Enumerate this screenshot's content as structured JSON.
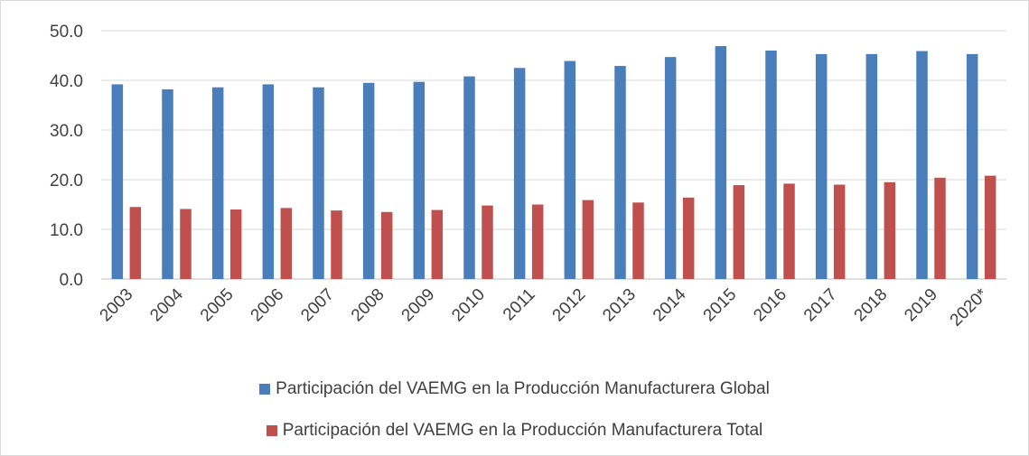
{
  "chart_data": {
    "type": "bar",
    "title": "",
    "xlabel": "",
    "ylabel": "",
    "ylim": [
      0,
      50
    ],
    "yticks": [
      "0.0",
      "10.0",
      "20.0",
      "30.0",
      "40.0",
      "50.0"
    ],
    "grid": true,
    "legend_position": "bottom",
    "categories": [
      "2003",
      "2004",
      "2005",
      "2006",
      "2007",
      "2008",
      "2009",
      "2010",
      "2011",
      "2012",
      "2013",
      "2014",
      "2015",
      "2016",
      "2017",
      "2018",
      "2019",
      "2020*"
    ],
    "series": [
      {
        "name": "Participación del VAEMG en la Producción Manufacturera Global",
        "color": "#4a7ebb",
        "values": [
          39.2,
          38.2,
          38.6,
          39.2,
          38.6,
          39.5,
          39.7,
          40.8,
          42.5,
          43.9,
          42.9,
          44.7,
          46.9,
          46.0,
          45.3,
          45.3,
          45.9,
          45.3
        ]
      },
      {
        "name": "Participación del VAEMG en la Producción Manufacturera Total",
        "color": "#c0504d",
        "values": [
          14.5,
          14.1,
          14.0,
          14.3,
          13.8,
          13.5,
          13.9,
          14.8,
          15.0,
          15.9,
          15.4,
          16.4,
          18.9,
          19.2,
          19.0,
          19.5,
          20.4,
          20.8
        ]
      }
    ]
  }
}
